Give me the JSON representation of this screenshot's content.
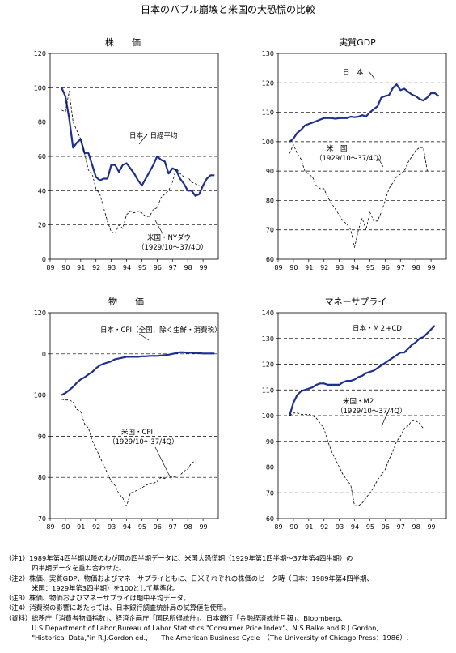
{
  "title": "日本のバブル崩壊と米国の大恐慌の比較",
  "chart_data": [
    {
      "type": "line",
      "title": "株　　価",
      "ylim": [
        0,
        120
      ],
      "yticks": [
        0,
        20,
        40,
        60,
        80,
        100,
        120
      ],
      "gridlines": [
        20,
        40,
        60,
        80,
        100
      ],
      "xlim": [
        89,
        100
      ],
      "xticks": [
        "89",
        "90",
        "91",
        "92",
        "93",
        "94",
        "95",
        "96",
        "97",
        "98",
        "99"
      ],
      "series": [
        {
          "name": "日本・日経平均",
          "style": "solid",
          "x": [
            89.75,
            90.0,
            90.25,
            90.5,
            90.75,
            91.0,
            91.25,
            91.5,
            91.75,
            92.0,
            92.25,
            92.5,
            92.75,
            93.0,
            93.25,
            93.5,
            93.75,
            94.0,
            94.25,
            94.5,
            94.75,
            95.0,
            95.25,
            95.5,
            95.75,
            96.0,
            96.25,
            96.5,
            96.75,
            97.0,
            97.25,
            97.5,
            97.75,
            98.0,
            98.25,
            98.5,
            98.75,
            99.0,
            99.25,
            99.5,
            99.75
          ],
          "y": [
            100,
            95,
            82,
            65,
            68,
            70,
            62,
            62,
            55,
            48,
            46,
            47,
            47,
            55,
            55,
            51,
            55,
            56,
            53,
            50,
            46,
            43,
            47,
            51,
            55,
            60,
            58,
            57,
            50,
            53,
            52,
            47,
            44,
            40,
            40,
            37,
            38,
            43,
            47,
            49,
            49
          ]
        },
        {
          "name": "米国・NYダウ",
          "style": "dashed",
          "x": [
            89.75,
            90.0,
            90.25,
            90.5,
            90.75,
            91.0,
            91.25,
            91.5,
            91.75,
            92.0,
            92.25,
            92.5,
            92.75,
            93.0,
            93.25,
            93.5,
            93.75,
            94.0,
            94.25,
            94.5,
            94.75,
            95.0,
            95.25,
            95.5,
            95.75,
            96.0,
            96.25,
            96.5,
            96.75,
            97.0,
            97.25,
            97.5,
            97.75,
            98.0,
            98.25,
            98.5,
            98.75
          ],
          "y": [
            87,
            86,
            98,
            80,
            75,
            70,
            62,
            52,
            50,
            41,
            38,
            30,
            22,
            16,
            15,
            20,
            18,
            26,
            28,
            27,
            28,
            27,
            25,
            25,
            29,
            30,
            36,
            38,
            40,
            45,
            53,
            50,
            48,
            48,
            45,
            44,
            43
          ]
        }
      ],
      "annotations": [
        {
          "text": "日本・日経平均"
        },
        {
          "text": "米国・NYダウ"
        },
        {
          "text": "（1929/10～37/4Q）"
        }
      ]
    },
    {
      "type": "line",
      "title": "実質GDP",
      "ylim": [
        60,
        130
      ],
      "yticks": [
        60,
        70,
        80,
        90,
        100,
        110,
        120,
        130
      ],
      "gridlines": [
        70,
        80,
        90,
        100,
        110,
        120
      ],
      "xlim": [
        89,
        100
      ],
      "xticks": [
        "89",
        "90",
        "91",
        "92",
        "93",
        "94",
        "95",
        "96",
        "97",
        "98",
        "99"
      ],
      "series": [
        {
          "name": "日　本",
          "style": "solid",
          "x": [
            89.75,
            90.0,
            90.25,
            90.5,
            90.75,
            91.0,
            91.25,
            91.5,
            91.75,
            92.0,
            92.25,
            92.5,
            92.75,
            93.0,
            93.25,
            93.5,
            93.75,
            94.0,
            94.25,
            94.5,
            94.75,
            95.0,
            95.25,
            95.5,
            95.75,
            96.0,
            96.25,
            96.5,
            96.75,
            97.0,
            97.25,
            97.5,
            97.75,
            98.0,
            98.25,
            98.5,
            98.75,
            99.0,
            99.25,
            99.5
          ],
          "y": [
            100,
            101,
            103,
            104,
            105.5,
            106,
            106.5,
            107,
            107.5,
            108,
            108,
            108,
            107.8,
            108,
            108,
            108,
            108.5,
            108.3,
            108.5,
            109,
            108.6,
            110,
            111,
            112,
            115,
            115.5,
            115.8,
            118.2,
            119.5,
            117.5,
            118,
            117,
            116,
            115.5,
            114.5,
            114,
            115,
            116.5,
            116.5,
            115.5
          ]
        },
        {
          "name": "米　国",
          "style": "dashed",
          "x": [
            89.75,
            90.0,
            90.25,
            90.5,
            90.75,
            91.0,
            91.25,
            91.5,
            91.75,
            92.0,
            92.25,
            92.5,
            92.75,
            93.0,
            93.25,
            93.5,
            93.75,
            94.0,
            94.25,
            94.5,
            94.75,
            95.0,
            95.25,
            95.5,
            95.75,
            96.0,
            96.25,
            96.5,
            96.75,
            97.0,
            97.25,
            97.5,
            97.75,
            98.0,
            98.25,
            98.5,
            98.75
          ],
          "y": [
            96,
            99,
            96,
            94,
            90,
            89,
            88,
            85,
            84,
            84,
            81,
            79,
            77,
            75,
            73,
            72,
            70,
            64,
            70,
            74,
            70,
            76,
            73,
            73,
            76,
            80,
            84,
            86,
            88,
            89,
            90,
            93,
            95,
            97,
            98,
            98,
            90
          ]
        }
      ],
      "annotations": [
        {
          "text": "日　本"
        },
        {
          "text": "米　国"
        },
        {
          "text": "（1929/10～37/4Q）"
        }
      ]
    },
    {
      "type": "line",
      "title": "物　　価",
      "ylim": [
        70,
        120
      ],
      "yticks": [
        70,
        80,
        90,
        100,
        110,
        120
      ],
      "gridlines": [
        80,
        90,
        100,
        110
      ],
      "xlim": [
        89,
        100
      ],
      "xticks": [
        "89",
        "90",
        "91",
        "92",
        "93",
        "94",
        "95",
        "96",
        "97",
        "98",
        "99"
      ],
      "series": [
        {
          "name": "日本・CPI（全国、除く生鮮・消費税）",
          "style": "solid",
          "x": [
            89.75,
            90.0,
            90.25,
            90.5,
            90.75,
            91.0,
            91.25,
            91.5,
            91.75,
            92.0,
            92.25,
            92.5,
            92.75,
            93.0,
            93.25,
            93.5,
            93.75,
            94.0,
            94.25,
            94.5,
            94.75,
            95.0,
            95.25,
            95.5,
            95.75,
            96.0,
            96.25,
            96.5,
            96.75,
            97.0,
            97.25,
            97.5,
            97.75,
            98.0,
            98.25,
            98.5,
            98.75,
            99.0,
            99.25,
            99.5,
            99.75
          ],
          "y": [
            100,
            100.5,
            101.2,
            102,
            103,
            103.8,
            104.3,
            105,
            105.6,
            106.5,
            107.2,
            107.6,
            107.9,
            108.2,
            108.7,
            108.9,
            109.1,
            109.3,
            109.3,
            109.3,
            109.3,
            109.4,
            109.4,
            109.5,
            109.5,
            109.5,
            109.6,
            109.7,
            109.8,
            110,
            110.2,
            110.4,
            110.4,
            110.2,
            110.3,
            110.2,
            110.2,
            110.1,
            110.1,
            110.1,
            110.1
          ]
        },
        {
          "name": "米国・CPI",
          "style": "dashed",
          "x": [
            89.75,
            90.0,
            90.25,
            90.5,
            90.75,
            91.0,
            91.25,
            91.5,
            91.75,
            92.0,
            92.25,
            92.5,
            92.75,
            93.0,
            93.25,
            93.5,
            93.75,
            94.0,
            94.25,
            94.5,
            94.75,
            95.0,
            95.25,
            95.5,
            95.75,
            96.0,
            96.25,
            96.5,
            96.75,
            97.0,
            97.25,
            97.5,
            97.75,
            98.0,
            98.25,
            98.5
          ],
          "y": [
            99,
            98.8,
            98.8,
            98.3,
            96.5,
            96,
            93,
            92,
            89,
            87,
            85,
            83,
            81,
            79,
            78,
            76,
            75,
            73,
            76.2,
            76.5,
            77,
            77.5,
            78,
            78.5,
            78.5,
            79,
            80,
            79.7,
            80.5,
            80,
            80.2,
            80.5,
            81.5,
            82,
            83.5,
            84
          ]
        }
      ],
      "annotations": [
        {
          "text": "日本・CPI（全国、除く生鮮・消費税）"
        },
        {
          "text": "米国・CPI"
        },
        {
          "text": "（1929/10～37/4Q）"
        }
      ]
    },
    {
      "type": "line",
      "title": "マネーサプライ",
      "ylim": [
        60,
        140
      ],
      "yticks": [
        60,
        70,
        80,
        90,
        100,
        110,
        120,
        130,
        140
      ],
      "gridlines": [
        70,
        80,
        90,
        100,
        110,
        120,
        130
      ],
      "xlim": [
        89,
        100
      ],
      "xticks": [
        "89",
        "90",
        "91",
        "92",
        "93",
        "94",
        "95",
        "96",
        "97",
        "98",
        "99"
      ],
      "series": [
        {
          "name": "日本・M２+CD",
          "style": "solid",
          "x": [
            89.75,
            90.0,
            90.25,
            90.5,
            90.75,
            91.0,
            91.25,
            91.5,
            91.75,
            92.0,
            92.25,
            92.5,
            92.75,
            93.0,
            93.25,
            93.5,
            93.75,
            94.0,
            94.25,
            94.5,
            94.75,
            95.0,
            95.25,
            95.5,
            95.75,
            96.0,
            96.25,
            96.5,
            96.75,
            97.0,
            97.25,
            97.5,
            97.75,
            98.0,
            98.25,
            98.5,
            98.75,
            99.0,
            99.25
          ],
          "y": [
            100,
            105,
            108,
            109.5,
            110,
            110.5,
            111,
            112,
            112.5,
            112.5,
            112,
            112,
            112,
            112,
            113,
            113.5,
            113.5,
            114,
            115,
            115.5,
            116.5,
            117,
            117.5,
            118.5,
            119.5,
            120.5,
            121.5,
            122.5,
            123.5,
            124.5,
            124.5,
            126,
            127.5,
            128.5,
            130,
            130.5,
            132,
            133.5,
            135
          ]
        },
        {
          "name": "米国・M2",
          "style": "dashed",
          "x": [
            89.75,
            90.0,
            90.25,
            90.5,
            90.75,
            91.0,
            91.25,
            91.5,
            91.75,
            92.0,
            92.25,
            92.5,
            92.75,
            93.0,
            93.25,
            93.5,
            93.75,
            94.0,
            94.25,
            94.5,
            94.75,
            95.0,
            95.25,
            95.5,
            95.75,
            96.0,
            96.25,
            96.5,
            96.75,
            97.0,
            97.25,
            97.5,
            97.75,
            98.0,
            98.25,
            98.5
          ],
          "y": [
            100,
            101,
            101,
            100.5,
            100.5,
            100.5,
            100,
            99,
            97,
            95,
            90,
            86,
            83,
            80,
            77,
            75,
            73,
            65,
            65,
            66,
            68,
            70,
            72,
            75,
            77,
            79,
            83,
            86,
            90,
            92,
            95,
            96,
            98,
            98,
            97,
            95
          ]
        }
      ],
      "annotations": [
        {
          "text": "日本・M２+CD"
        },
        {
          "text": "米国・M2"
        },
        {
          "text": "（1929/10～37/4Q）"
        }
      ]
    }
  ],
  "notes": [
    "（注1）1989年第4四半期以降のわが国の四半期データに、米国大恐慌期（1929年第1四半期～37年第4四半期）の",
    "　　　　四半期データを重ね合わせた。",
    "（注2）株価、実質GDP、物価およびマネーサプライともに、日米それぞれの株価のピーク時（日本：1989年第4四半期、",
    "　　　　米国：1929年第3四半期）を100として基準化。",
    "（注3）株価、物価およびマネーサプライは期中平均データ。",
    "（注4）消費税の影響にあたっては、日本銀行調査統計局の試算値を使用。",
    "（資料）総務庁「消費者物価指数」、経済企画庁「国民所得統計」、日本銀行「金融経済統計月報」、Bloomberg、",
    "　　　　U.S.Department of Labor,Bureau of Labor Statistics,\"Consumer Price Index\"、N.S.Balke and R.J.Gordon,",
    "　　　　\"Historical Data,\"in R.J.Gordon ed.,　　The American Business Cycle　（The University of Chicago Press：1986）."
  ]
}
